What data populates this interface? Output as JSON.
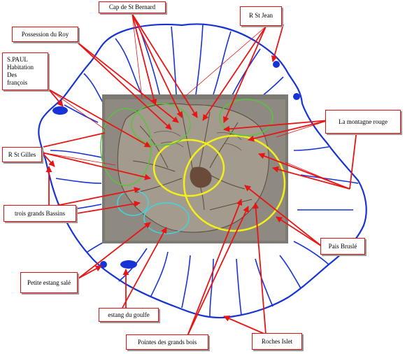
{
  "map": {
    "colors": {
      "coast": "#1733d6",
      "arrow": "#e81515",
      "zone_yellow": "#f4ef16",
      "zone_green": "#58c43c",
      "zone_cyan": "#3fd6e0",
      "photo_bg": "#7d7a73",
      "pond": "#1733d6"
    },
    "labels": {
      "cap_st_bernard": "Cap de St Bernard",
      "r_st_jean": "R St Jean",
      "possession_du_roy": "Possession du Roy",
      "st_paul": "S.PAUL\nHabitation\nDes\nfrançois",
      "la_montagne_rouge": "La montagne rouge",
      "r_st_gilles": "R St Gilles",
      "trois_grands_bassins": "trois grands Bassins",
      "pais_brusle": "Pais Bruslé",
      "petite_estang_sale": "Petite estang salé",
      "estang_du_goulfe": "estang du goulfe",
      "pointes_des_grands_bois": "Pointes des grands bois",
      "roches_islet": "Roches  Islet"
    }
  }
}
